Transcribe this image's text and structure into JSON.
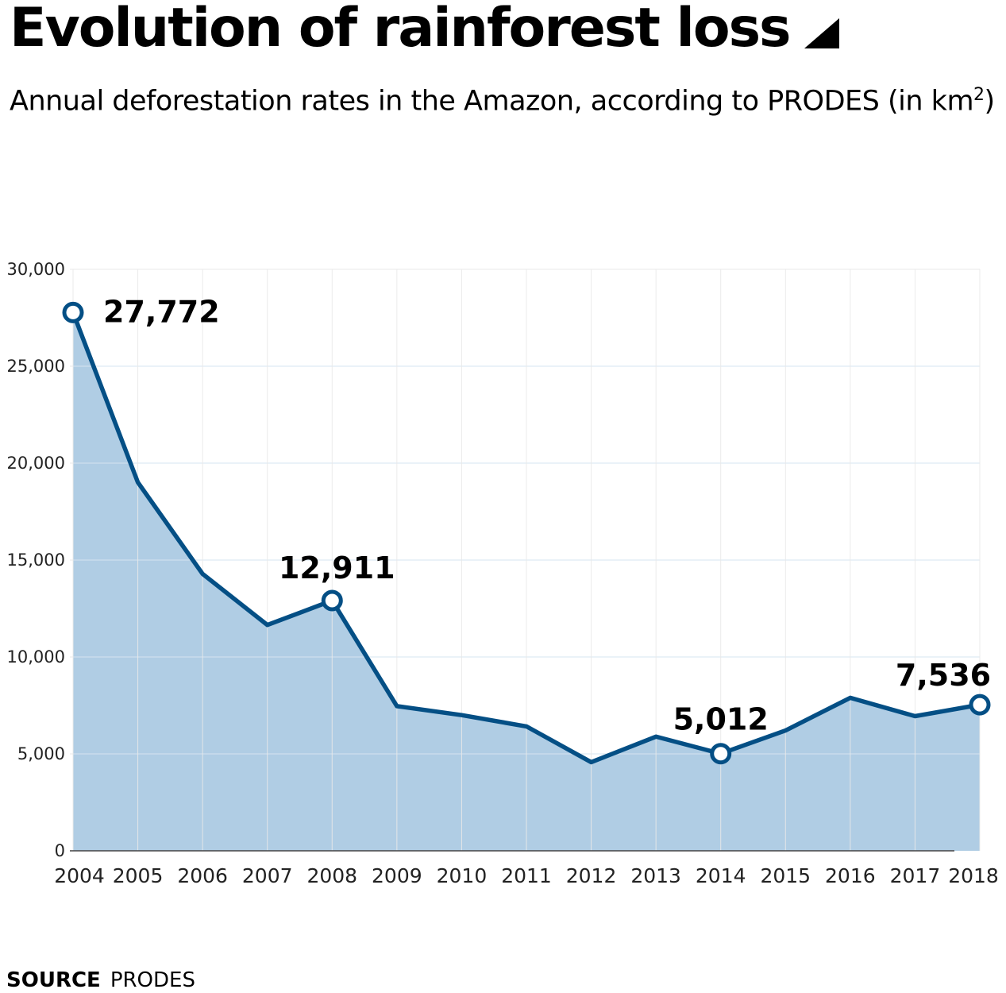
{
  "header": {
    "title": "Evolution of rainforest loss",
    "subtitle_main": "Annual deforestation rates in the Amazon, according to PRODES (in km",
    "subtitle_sup": "2",
    "subtitle_end": ")"
  },
  "chart_data": {
    "type": "area",
    "x": [
      2004,
      2005,
      2006,
      2007,
      2008,
      2009,
      2010,
      2011,
      2012,
      2013,
      2014,
      2015,
      2016,
      2017,
      2018
    ],
    "series": [
      {
        "values": [
          27772,
          19014,
          14286,
          11651,
          12911,
          7464,
          7000,
          6418,
          4571,
          5891,
          5012,
          6207,
          7893,
          6947,
          7536
        ]
      }
    ],
    "xlabel": "",
    "ylabel": "",
    "ylim": [
      0,
      30000
    ],
    "yticks": [
      0,
      5000,
      10000,
      15000,
      20000,
      25000,
      30000
    ],
    "ytick_labels": [
      "0",
      "5,000",
      "10,000",
      "15,000",
      "20,000",
      "25,000",
      "30,000"
    ],
    "xtick_labels": [
      "2004",
      "2005",
      "2006",
      "2007",
      "2008",
      "2009",
      "2010",
      "2011",
      "2012",
      "2013",
      "2014",
      "2015",
      "2016",
      "2017",
      "2018"
    ],
    "grid": true,
    "annotations": [
      {
        "x": 2004,
        "value": 27772,
        "label": "27,772"
      },
      {
        "x": 2008,
        "value": 12911,
        "label": "12,911"
      },
      {
        "x": 2014,
        "value": 5012,
        "label": "5,012"
      },
      {
        "x": 2018,
        "value": 7536,
        "label": "7,536"
      }
    ],
    "colors": {
      "line": "#044f85",
      "fill": "#b0cde4",
      "grid": "#e9e9e9",
      "fill_grid": "#d6e4f0"
    }
  },
  "footer": {
    "source_label": "SOURCE",
    "source_value": "PRODES"
  }
}
